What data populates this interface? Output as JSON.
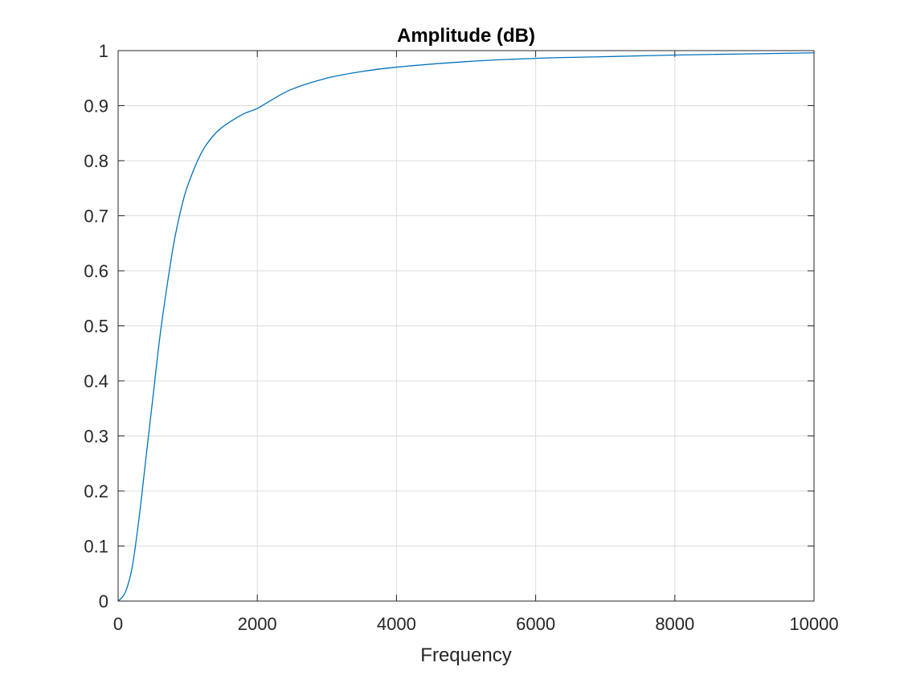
{
  "chart_data": {
    "type": "line",
    "title": "Amplitude (dB)",
    "xlabel": "Frequency",
    "ylabel": "",
    "xlim": [
      0,
      10000
    ],
    "ylim": [
      0,
      1
    ],
    "grid": true,
    "legend": "none",
    "x_ticks": [
      0,
      2000,
      4000,
      6000,
      8000,
      10000
    ],
    "x_tick_labels": [
      "0",
      "2000",
      "4000",
      "6000",
      "8000",
      "10000"
    ],
    "y_ticks": [
      0,
      0.1,
      0.2,
      0.3,
      0.4,
      0.5,
      0.6,
      0.7,
      0.8,
      0.9,
      1
    ],
    "y_tick_labels": [
      "0",
      "0.1",
      "0.2",
      "0.3",
      "0.4",
      "0.5",
      "0.6",
      "0.7",
      "0.8",
      "0.9",
      "1"
    ],
    "series": [
      {
        "color": "#0072bd",
        "x": [
          0,
          100,
          200,
          300,
          400,
          500,
          600,
          700,
          800,
          900,
          1000,
          1200,
          1400,
          1600,
          1800,
          2000,
          2200,
          2500,
          3000,
          3500,
          4000,
          5000,
          6000,
          7000,
          8000,
          9000,
          10000
        ],
        "values": [
          0,
          0.015,
          0.06,
          0.15,
          0.26,
          0.37,
          0.48,
          0.57,
          0.65,
          0.71,
          0.755,
          0.815,
          0.85,
          0.87,
          0.885,
          0.895,
          0.91,
          0.93,
          0.95,
          0.962,
          0.97,
          0.98,
          0.986,
          0.989,
          0.992,
          0.994,
          0.996
        ]
      }
    ]
  }
}
